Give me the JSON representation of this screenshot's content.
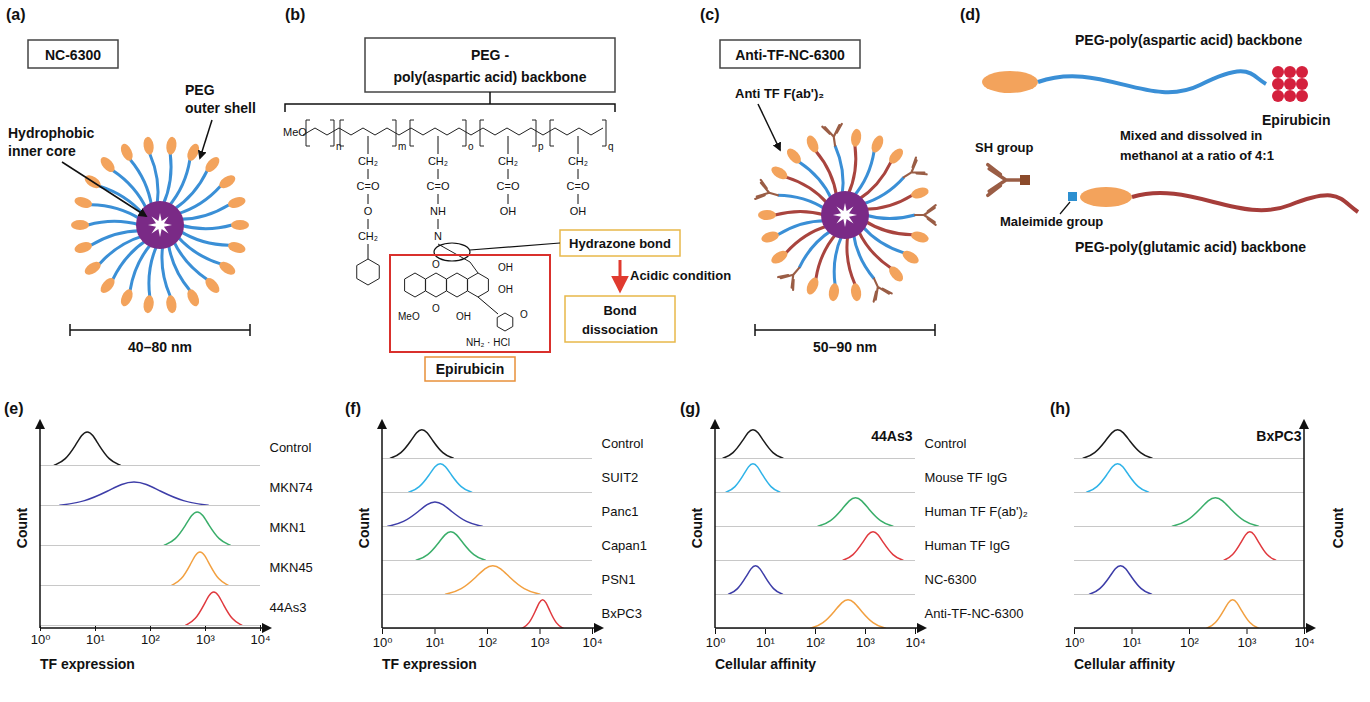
{
  "diagrams": {
    "a": {
      "letter": "(a)",
      "name": "NC-6300",
      "shell_label": [
        "PEG",
        "outer shell"
      ],
      "core_label": [
        "Hydrophobic",
        "inner core"
      ],
      "size": "40–80 nm"
    },
    "b": {
      "letter": "(b)",
      "backbone_label": [
        "PEG -",
        "poly(aspartic acid) backbone"
      ],
      "structure": {
        "head": "MeO",
        "peg_subscript": "n",
        "unit_subscripts": [
          "m",
          "o",
          "p",
          "q"
        ],
        "unit_groups": [
          [
            "CH₂",
            "C=O",
            "O",
            "CH₂"
          ],
          [
            "CH₂",
            "C=O",
            "NH",
            "N"
          ],
          [
            "CH₂",
            "C=O",
            "OH"
          ],
          [
            "CH₂",
            "C=O",
            "OH"
          ]
        ],
        "drug_labels": [
          "O",
          "OH",
          "OH",
          "MeO",
          "O",
          "OH",
          "O",
          "NH₂ · HCl"
        ]
      },
      "bond_label": "Hydrazone bond",
      "condition": "Acidic condition",
      "result": [
        "Bond",
        "dissociation"
      ],
      "drug_label": "Epirubicin"
    },
    "c": {
      "letter": "(c)",
      "name": "Anti-TF-NC-6300",
      "antibody_label": "Anti TF F(ab')₂",
      "size": "50–90 nm"
    },
    "d": {
      "letter": "(d)",
      "backbone1": "PEG-poly(aspartic acid) backbone",
      "drug_label": "Epirubicin",
      "sh_label": "SH group",
      "mix_label": [
        "Mixed and dissolved in",
        "methanol at a ratio of 4:1"
      ],
      "maleimide_label": "Maleimide group",
      "backbone2": "PEG-poly(glutamic acid) backbone"
    }
  },
  "chart_data": [
    {
      "type": "line",
      "title": "(e)",
      "x_label": "TF expression",
      "y_label": "Count",
      "log": "x",
      "xlim": [
        1,
        10000
      ],
      "xticks": [
        {
          "value": 1,
          "label": "10⁰"
        },
        {
          "value": 10,
          "label": "10¹"
        },
        {
          "value": 100,
          "label": "10²"
        },
        {
          "value": 1000,
          "label": "10³"
        },
        {
          "value": 10000,
          "label": "10⁴"
        }
      ],
      "ylim": [
        0,
        100
      ],
      "tick_labels": "x",
      "series": [
        {
          "name": "Control",
          "color": "#1b1b1b",
          "x": [
            1.78,
            2.82,
            4.47,
            5.62,
            7.08,
            8.91,
            11.2,
            17.8,
            28.2
          ],
          "values": [
            1,
            14,
            61,
            88,
            100,
            88,
            61,
            14,
            1
          ]
        },
        {
          "name": "MKN74",
          "color": "#3d3da8",
          "x": [
            2.24,
            6.31,
            17.8,
            29.9,
            50.1,
            84.1,
            141,
            398,
            1122
          ],
          "values": [
            1,
            10,
            43,
            62,
            70,
            62,
            43,
            10,
            1
          ]
        },
        {
          "name": "MKN1",
          "color": "#3aae6a",
          "x": [
            178,
            282,
            447,
            562,
            708,
            891,
            1122,
            1778,
            2818
          ],
          "values": [
            1,
            14,
            61,
            88,
            100,
            88,
            61,
            14,
            1
          ]
        },
        {
          "name": "MKN45",
          "color": "#f2a040",
          "x": [
            245,
            363,
            537,
            653,
            794,
            966,
            1175,
            1738,
            2570
          ],
          "values": [
            1,
            14,
            61,
            88,
            100,
            88,
            61,
            14,
            1
          ]
        },
        {
          "name": "44As3",
          "color": "#e0393e",
          "x": [
            437,
            646,
            955,
            1161,
            1413,
            1718,
            2089,
            3090,
            4571
          ],
          "values": [
            1,
            14,
            61,
            88,
            100,
            88,
            61,
            14,
            1
          ]
        }
      ]
    },
    {
      "type": "line",
      "title": "(f)",
      "x_label": "TF expression",
      "y_label": "Count",
      "log": "x",
      "xlim": [
        1,
        10000
      ],
      "xticks": [
        {
          "value": 1,
          "label": "10⁰"
        },
        {
          "value": 10,
          "label": "10¹"
        },
        {
          "value": 100,
          "label": "10²"
        },
        {
          "value": 1000,
          "label": "10³"
        },
        {
          "value": 10000,
          "label": "10⁴"
        }
      ],
      "ylim": [
        0,
        100
      ],
      "tick_labels": "x",
      "series": [
        {
          "name": "Control",
          "color": "#1b1b1b",
          "x": [
            1.41,
            2.24,
            3.55,
            4.47,
            5.62,
            7.08,
            8.91,
            14.1,
            22.4
          ],
          "values": [
            1,
            14,
            61,
            88,
            100,
            88,
            61,
            14,
            1
          ]
        },
        {
          "name": "SUIT2",
          "color": "#2fb3e8",
          "x": [
            3.16,
            5.01,
            7.94,
            10,
            12.6,
            15.8,
            20,
            31.6,
            50.1
          ],
          "values": [
            1,
            14,
            61,
            88,
            100,
            88,
            61,
            14,
            1
          ]
        },
        {
          "name": "Panc1",
          "color": "#3d3da8",
          "x": [
            1.26,
            2.51,
            5.01,
            7.08,
            10,
            14.1,
            20,
            39.8,
            79.4
          ],
          "values": [
            1,
            12,
            52,
            75,
            85,
            75,
            52,
            12,
            1
          ]
        },
        {
          "name": "Capan1",
          "color": "#3aae6a",
          "x": [
            4.37,
            7.24,
            12,
            15.5,
            20,
            25.7,
            33.1,
            55,
            91.2
          ],
          "values": [
            1,
            14,
            61,
            88,
            100,
            88,
            61,
            14,
            1
          ]
        },
        {
          "name": "PSN1",
          "color": "#f2a040",
          "x": [
            15.8,
            31.6,
            63.1,
            89.1,
            126,
            178,
            251,
            501,
            1000
          ],
          "values": [
            1,
            14,
            61,
            88,
            100,
            88,
            61,
            14,
            1
          ]
        },
        {
          "name": "BxPC3",
          "color": "#e0393e",
          "x": [
            457,
            617,
            832,
            966,
            1122,
            1303,
            1514,
            2042,
            2754
          ],
          "values": [
            1,
            14,
            61,
            88,
            100,
            88,
            61,
            14,
            1
          ]
        }
      ]
    },
    {
      "type": "line",
      "title": "(g)",
      "x_label": "Cellular affinity",
      "y_label": "Count",
      "annotation": "44As3",
      "log": "x",
      "xlim": [
        1,
        10000
      ],
      "xticks": [
        {
          "value": 1,
          "label": "10⁰"
        },
        {
          "value": 10,
          "label": "10¹"
        },
        {
          "value": 100,
          "label": "10²"
        },
        {
          "value": 1000,
          "label": "10³"
        },
        {
          "value": 10000,
          "label": "10⁴"
        }
      ],
      "ylim": [
        0,
        100
      ],
      "tick_labels": "x",
      "series": [
        {
          "name": "Control",
          "color": "#1b1b1b",
          "x": [
            1.41,
            2.24,
            3.55,
            4.47,
            5.62,
            7.08,
            8.91,
            14.1,
            22.4
          ],
          "values": [
            1,
            14,
            61,
            88,
            100,
            88,
            61,
            14,
            1
          ]
        },
        {
          "name": "Mouse TF IgG",
          "color": "#2fb3e8",
          "x": [
            1.62,
            2.45,
            3.72,
            4.57,
            5.62,
            6.92,
            8.51,
            12.9,
            19.5
          ],
          "values": [
            1,
            14,
            61,
            88,
            100,
            88,
            61,
            14,
            1
          ]
        },
        {
          "name": "Human TF F(ab')₂",
          "color": "#3aae6a",
          "x": [
            112,
            200,
            355,
            473,
            631,
            841,
            1122,
            1995,
            3548
          ],
          "values": [
            1,
            14,
            61,
            88,
            100,
            88,
            61,
            14,
            1
          ]
        },
        {
          "name": "Human TF IgG",
          "color": "#e0393e",
          "x": [
            355,
            562,
            891,
            1122,
            1413,
            1778,
            2239,
            3548,
            5623
          ],
          "values": [
            1,
            14,
            61,
            88,
            100,
            88,
            61,
            14,
            1
          ]
        },
        {
          "name": "NC-6300",
          "color": "#3d3da8",
          "x": [
            1.82,
            2.75,
            4.17,
            5.13,
            6.31,
            7.76,
            9.55,
            14.5,
            21.9
          ],
          "values": [
            1,
            14,
            61,
            88,
            100,
            88,
            61,
            14,
            1
          ]
        },
        {
          "name": "Anti-TF-NC-6300",
          "color": "#f2a040",
          "x": [
            79.4,
            141,
            251,
            335,
            447,
            596,
            794,
            1413,
            2512
          ],
          "values": [
            1,
            14,
            61,
            88,
            100,
            88,
            61,
            14,
            1
          ]
        }
      ]
    },
    {
      "type": "line",
      "title": "(h)",
      "x_label": "Cellular affinity",
      "y_label": "Count",
      "annotation": "BxPC3",
      "log": "x",
      "xlim": [
        1,
        10000
      ],
      "xticks": [
        {
          "value": 1,
          "label": "10⁰"
        },
        {
          "value": 10,
          "label": "10¹"
        },
        {
          "value": 100,
          "label": "10²"
        },
        {
          "value": 1000,
          "label": "10³"
        },
        {
          "value": 10000,
          "label": "10⁴"
        }
      ],
      "ylim": [
        0,
        100
      ],
      "tick_labels": "x",
      "series": [
        {
          "name": "Control",
          "color": "#1b1b1b",
          "x": [
            1.41,
            2.24,
            3.55,
            4.47,
            5.62,
            7.08,
            8.91,
            14.1,
            22.4
          ],
          "values": [
            1,
            14,
            61,
            88,
            100,
            88,
            61,
            14,
            1
          ]
        },
        {
          "name": "Mouse TF IgG",
          "color": "#2fb3e8",
          "x": [
            1.62,
            2.45,
            3.72,
            4.57,
            5.62,
            6.92,
            8.51,
            12.9,
            19.5
          ],
          "values": [
            1,
            14,
            61,
            88,
            100,
            88,
            61,
            14,
            1
          ]
        },
        {
          "name": "Human TF F(ab')₂",
          "color": "#3aae6a",
          "x": [
            50.1,
            89.1,
            158,
            211,
            282,
            376,
            501,
            891,
            1585
          ],
          "values": [
            1,
            14,
            61,
            88,
            100,
            88,
            61,
            14,
            1
          ]
        },
        {
          "name": "Human TF IgG",
          "color": "#e0393e",
          "x": [
            398,
            562,
            794,
            944,
            1122,
            1334,
            1585,
            2239,
            3162
          ],
          "values": [
            1,
            14,
            61,
            88,
            100,
            88,
            61,
            14,
            1
          ]
        },
        {
          "name": "NC-6300",
          "color": "#3d3da8",
          "x": [
            1.82,
            2.75,
            4.17,
            5.13,
            6.31,
            7.76,
            9.55,
            14.5,
            21.9
          ],
          "values": [
            1,
            14,
            61,
            88,
            100,
            88,
            61,
            14,
            1
          ]
        },
        {
          "name": "Anti-TF-NC-6300",
          "color": "#f2a040",
          "x": [
            200,
            282,
            398,
            473,
            562,
            668,
            794,
            1122,
            1585
          ],
          "values": [
            1,
            14,
            61,
            88,
            100,
            88,
            61,
            14,
            1
          ]
        }
      ]
    }
  ]
}
